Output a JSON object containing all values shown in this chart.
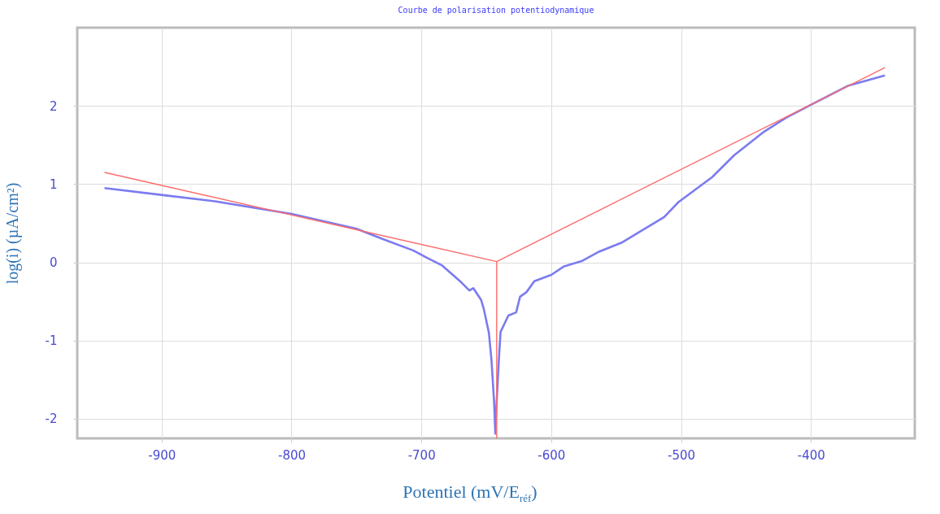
{
  "chart_data": {
    "type": "line",
    "title": "Courbe de polarisation potentiodynamique",
    "xlabel": "Potentiel (mV/E$_{réf}$)",
    "ylabel": "log(i)  (µA/cm²)",
    "xlim": [
      -965,
      -320
    ],
    "ylim": [
      -2.25,
      3
    ],
    "xticks": [
      -900,
      -800,
      -700,
      -600,
      -500,
      -400
    ],
    "yticks": [
      -2,
      -1,
      0,
      1,
      2
    ],
    "grid": true,
    "line_style": "solid",
    "series": [
      {
        "color": "#7b7bf0",
        "x": [
          -944,
          -899,
          -859,
          -800,
          -750,
          -730,
          -706,
          -697,
          -684,
          -675,
          -669,
          -663,
          -660,
          -654,
          -652,
          -648,
          -646,
          -644,
          -643,
          -642,
          -640,
          -639,
          -633,
          -627,
          -624,
          -619,
          -613,
          -600,
          -590,
          -576,
          -564,
          -546,
          -513,
          -502,
          -476,
          -459,
          -437,
          -419,
          -397,
          -371,
          -343
        ],
        "values": [
          0.95,
          0.86,
          0.78,
          0.62,
          0.43,
          0.3,
          0.15,
          0.07,
          -0.04,
          -0.17,
          -0.26,
          -0.36,
          -0.33,
          -0.48,
          -0.59,
          -0.9,
          -1.25,
          -1.78,
          -2.19,
          -1.78,
          -1.15,
          -0.89,
          -0.68,
          -0.64,
          -0.44,
          -0.38,
          -0.24,
          -0.16,
          -0.05,
          0.02,
          0.13,
          0.25,
          0.58,
          0.77,
          1.09,
          1.37,
          1.66,
          1.85,
          2.04,
          2.26,
          2.39
        ]
      },
      {
        "color": "#ff6b6b",
        "x": [
          -944,
          -642
        ],
        "values": [
          1.15,
          0.01
        ]
      },
      {
        "color": "#ff6b6b",
        "x": [
          -642,
          -343
        ],
        "values": [
          0.01,
          2.49
        ]
      },
      {
        "color": "#ff6b6b",
        "x": [
          -642,
          -642
        ],
        "values": [
          0.01,
          -2.25
        ]
      }
    ]
  }
}
